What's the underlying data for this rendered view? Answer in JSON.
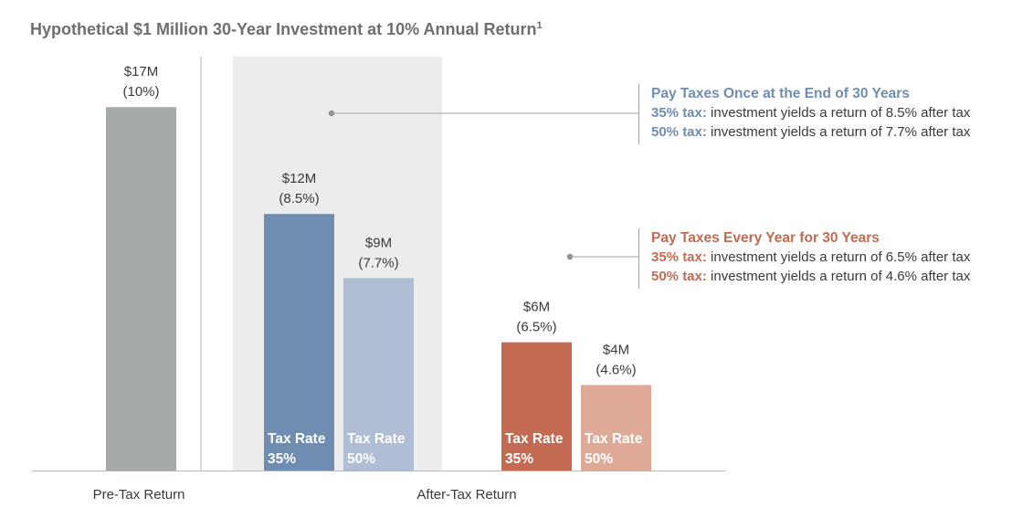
{
  "colors": {
    "pre_tax": "#a7aaab",
    "once_35": "#6f8db1",
    "once_50": "#afbed4",
    "every_35": "#c46a52",
    "every_50": "#dfa998",
    "highlight_band": "#ececec",
    "once_text": "#6f8db1",
    "every_text": "#c46a52",
    "axis": "#b9b9b9"
  },
  "chart_data": {
    "type": "bar",
    "title": "Hypothetical $1 Million 30-Year Investment at 10% Annual Return",
    "title_superscript": "1",
    "y_unit": "$M",
    "ylim": [
      0,
      17.7
    ],
    "grid": false,
    "groups": [
      "Pre-Tax Return",
      "After-Tax Return"
    ],
    "bars": [
      {
        "group": "Pre-Tax Return",
        "value": 17,
        "label": "$17M",
        "rate": "(10%)",
        "inner_label": [
          "",
          ""
        ],
        "color": "#a7aaab"
      },
      {
        "group": "After-Tax Return",
        "value": 12,
        "label": "$12M",
        "rate": "(8.5%)",
        "inner_label": [
          "Tax Rate",
          "35%"
        ],
        "color": "#6f8db1"
      },
      {
        "group": "After-Tax Return",
        "value": 9,
        "label": "$9M",
        "rate": "(7.7%)",
        "inner_label": [
          "Tax Rate",
          "50%"
        ],
        "color": "#afbed4"
      },
      {
        "group": "After-Tax Return",
        "value": 6,
        "label": "$6M",
        "rate": "(6.5%)",
        "inner_label": [
          "Tax Rate",
          "35%"
        ],
        "color": "#c46a52"
      },
      {
        "group": "After-Tax Return",
        "value": 4,
        "label": "$4M",
        "rate": "(4.6%)",
        "inner_label": [
          "Tax Rate",
          "50%"
        ],
        "color": "#dfa998"
      }
    ]
  },
  "callouts": {
    "once": {
      "heading": "Pay Taxes Once at the End of 30 Years",
      "line1_lead": "35% tax:",
      "line1_text": " investment yields a return of 8.5% after tax",
      "line2_lead": "50% tax:",
      "line2_text": " investment yields a return of 7.7% after tax"
    },
    "every": {
      "heading": "Pay Taxes Every Year for 30 Years",
      "line1_lead": "35% tax:",
      "line1_text": " investment yields a return of 6.5% after tax",
      "line2_lead": "50% tax:",
      "line2_text": " investment yields a return of 4.6% after tax"
    }
  }
}
